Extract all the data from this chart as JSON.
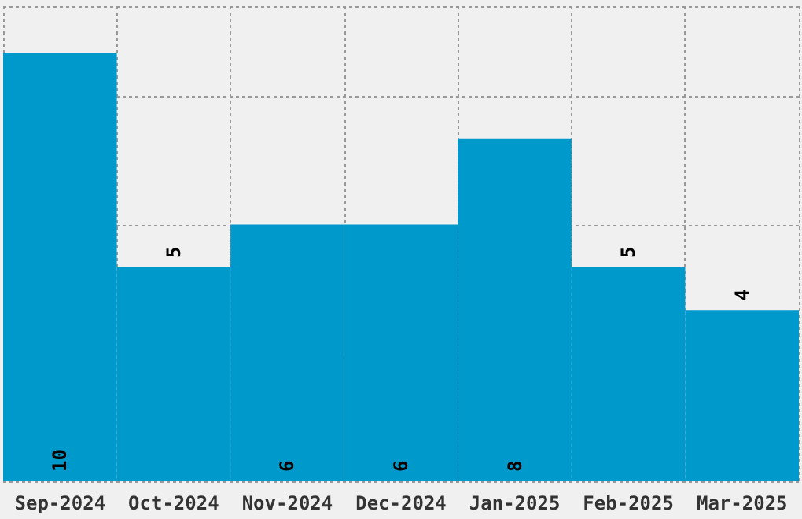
{
  "chart_data": {
    "type": "bar",
    "categories": [
      "Sep-2024",
      "Oct-2024",
      "Nov-2024",
      "Dec-2024",
      "Jan-2025",
      "Feb-2025",
      "Mar-2025"
    ],
    "values": [
      10,
      5,
      6,
      6,
      8,
      5,
      4
    ],
    "color": "#0099cc",
    "data_labels": true,
    "grid": true
  }
}
